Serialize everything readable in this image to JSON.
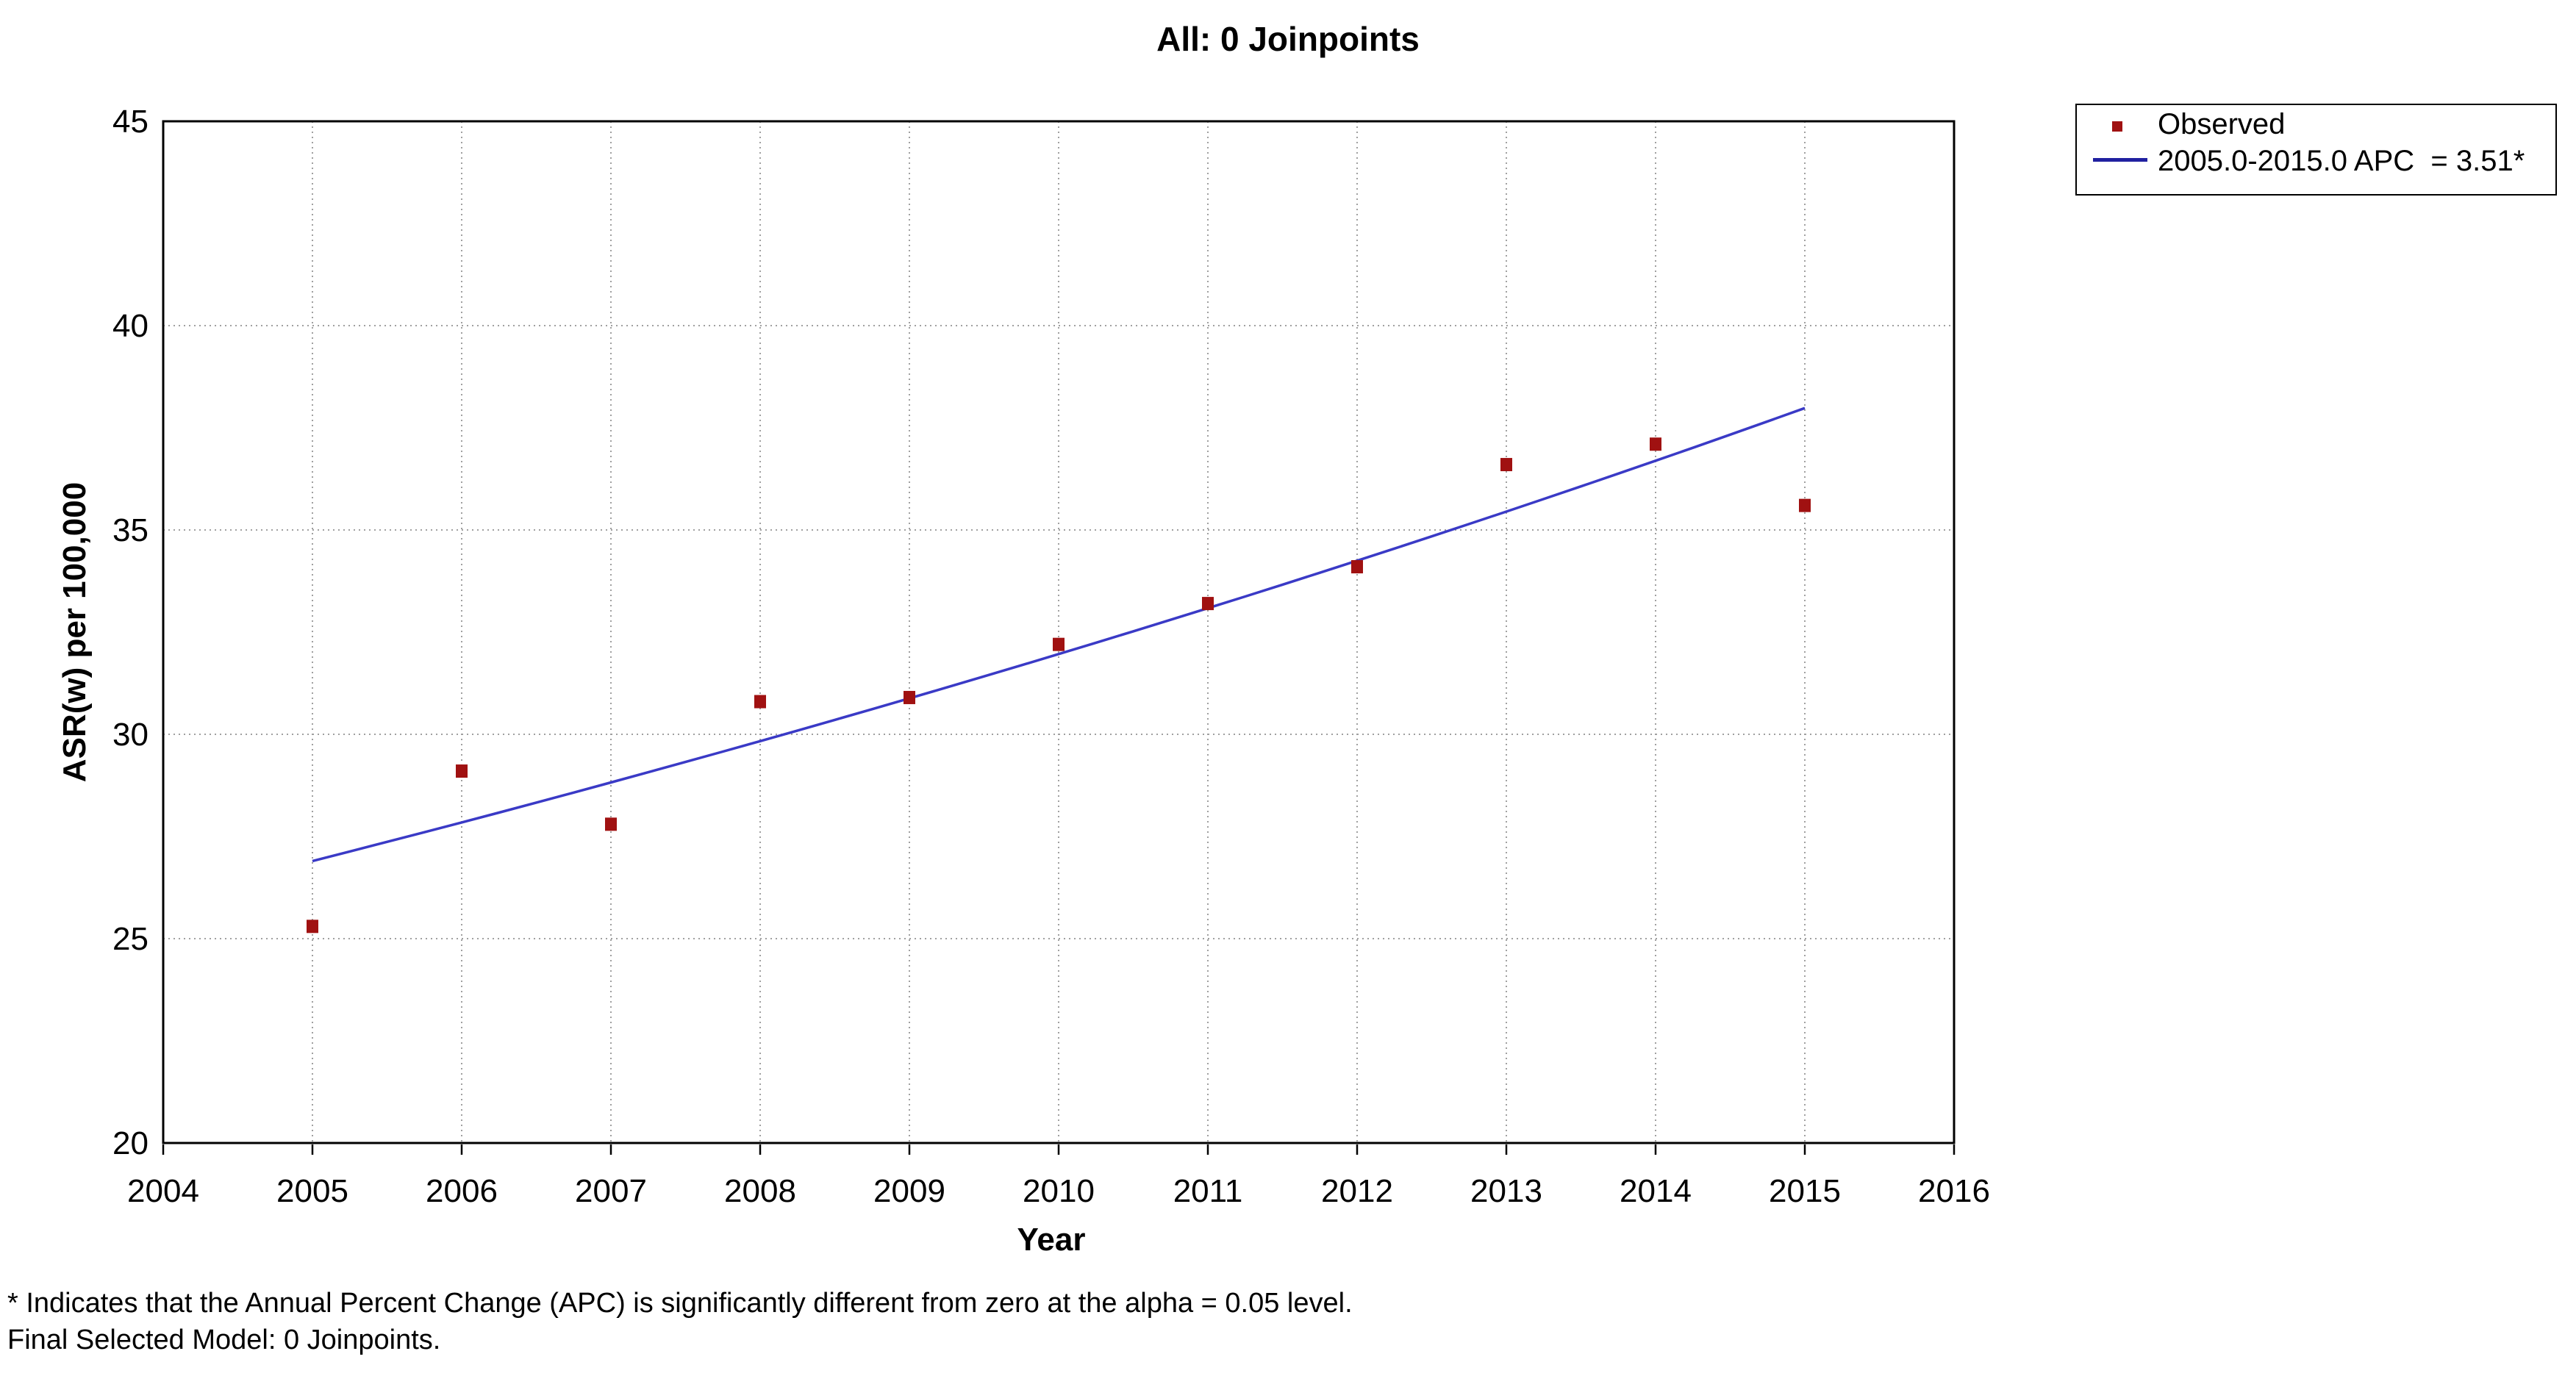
{
  "chart_data": {
    "type": "line",
    "title": "All: 0 Joinpoints",
    "xlabel": "Year",
    "ylabel": "ASR(w) per 100,000",
    "xlim": [
      2004,
      2016
    ],
    "ylim": [
      20,
      45
    ],
    "x_ticks": [
      2004,
      2005,
      2006,
      2007,
      2008,
      2009,
      2010,
      2011,
      2012,
      2013,
      2014,
      2015,
      2016
    ],
    "y_ticks": [
      20,
      25,
      30,
      35,
      40,
      45
    ],
    "grid": "dotted-inner-gridlines",
    "legend_position": "outside-top-right",
    "series": [
      {
        "name": "Observed",
        "type": "scatter",
        "marker": "square",
        "color": "#a01111",
        "x": [
          2005,
          2006,
          2007,
          2008,
          2009,
          2010,
          2011,
          2012,
          2013,
          2014,
          2015
        ],
        "y": [
          25.3,
          29.1,
          27.8,
          30.8,
          30.9,
          32.2,
          33.2,
          34.1,
          36.6,
          37.1,
          35.6
        ]
      },
      {
        "name": "2005.0-2015.0 APC  = 3.51*",
        "type": "trend",
        "color": "#3a3ac6",
        "legend_swatch_color": "#2020a0",
        "x_start": 2005,
        "x_end": 2015,
        "y_start": 26.9,
        "apc_percent": 3.51
      }
    ]
  },
  "footnotes": {
    "line1": "* Indicates that the Annual Percent Change (APC) is significantly different from zero at the alpha = 0.05 level.",
    "line2": "Final Selected Model: 0 Joinpoints."
  },
  "style_colors": {
    "grid": "#a0a0a0",
    "axis": "#000000",
    "tick_text": "#000000",
    "background": "#ffffff"
  }
}
